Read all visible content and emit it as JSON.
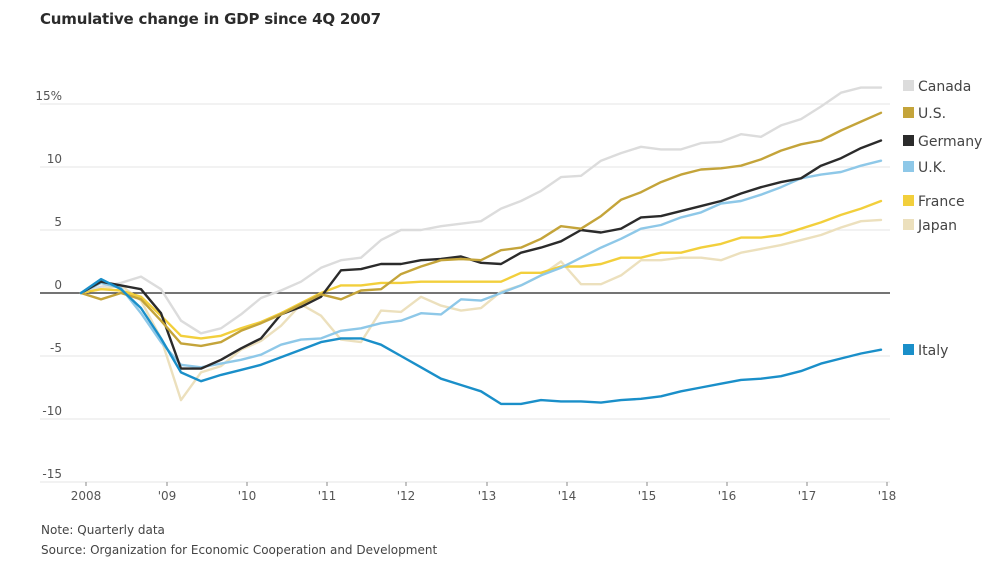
{
  "chart_data": {
    "type": "line",
    "title": "Cumulative change in GDP since 4Q 2007",
    "xlabel": "",
    "ylabel": "",
    "ylim": [
      -15,
      15
    ],
    "y_ticks": [
      {
        "value": 15,
        "label": "15%"
      },
      {
        "value": 10,
        "label": "10"
      },
      {
        "value": 5,
        "label": "5"
      },
      {
        "value": 0,
        "label": "0"
      },
      {
        "value": -5,
        "label": "-5"
      },
      {
        "value": -10,
        "label": "-10"
      },
      {
        "value": -15,
        "label": "-15"
      }
    ],
    "x_ticks": [
      {
        "quarter": 0.25,
        "label": "2008"
      },
      {
        "quarter": 4.3,
        "label": "'09"
      },
      {
        "quarter": 8.3,
        "label": "'10"
      },
      {
        "quarter": 12.3,
        "label": "'11"
      },
      {
        "quarter": 16.25,
        "label": "'12"
      },
      {
        "quarter": 20.3,
        "label": "'13"
      },
      {
        "quarter": 24.3,
        "label": "'14"
      },
      {
        "quarter": 28.3,
        "label": "'15"
      },
      {
        "quarter": 32.3,
        "label": "'16"
      },
      {
        "quarter": 36.3,
        "label": "'17"
      },
      {
        "quarter": 40.3,
        "label": "'18"
      }
    ],
    "x_description": "Quarters from 4Q 2007 (0) to 4Q 2017 (40)",
    "grid": true,
    "legend_position": "right",
    "series": [
      {
        "name": "Canada",
        "color": "#dcdcdc",
        "values": [
          0,
          0.5,
          0.8,
          1.3,
          0.3,
          -2.2,
          -3.2,
          -2.8,
          -1.7,
          -0.4,
          0.2,
          0.9,
          2.0,
          2.6,
          2.8,
          4.2,
          5.0,
          5.0,
          5.3,
          5.5,
          5.7,
          6.7,
          7.3,
          8.1,
          9.2,
          9.3,
          10.5,
          11.1,
          11.6,
          11.4,
          11.4,
          11.9,
          12.0,
          12.6,
          12.4,
          13.3,
          13.8,
          14.8,
          15.9,
          16.3,
          16.3
        ]
      },
      {
        "name": "Japan",
        "color": "#ece0bd",
        "values": [
          0,
          0.3,
          0.6,
          -0.6,
          -3.6,
          -8.5,
          -6.3,
          -5.8,
          -4.5,
          -3.8,
          -2.6,
          -0.9,
          -1.8,
          -3.7,
          -3.9,
          -1.4,
          -1.5,
          -0.3,
          -1.0,
          -1.4,
          -1.2,
          0.1,
          0.6,
          1.4,
          2.5,
          0.7,
          0.7,
          1.4,
          2.6,
          2.6,
          2.8,
          2.8,
          2.6,
          3.2,
          3.5,
          3.8,
          4.2,
          4.6,
          5.2,
          5.7,
          5.8
        ]
      },
      {
        "name": "France",
        "color": "#f2cf3c",
        "values": [
          0,
          0.3,
          0.2,
          -0.3,
          -1.8,
          -3.4,
          -3.6,
          -3.4,
          -2.8,
          -2.3,
          -1.6,
          -0.8,
          0.0,
          0.6,
          0.6,
          0.8,
          0.8,
          0.9,
          0.9,
          0.9,
          0.9,
          0.9,
          1.6,
          1.6,
          2.1,
          2.1,
          2.3,
          2.8,
          2.8,
          3.2,
          3.2,
          3.6,
          3.9,
          4.4,
          4.4,
          4.6,
          5.1,
          5.6,
          6.2,
          6.7,
          7.3
        ]
      },
      {
        "name": "U.K.",
        "color": "#8ec8e8",
        "values": [
          0,
          0.8,
          0.4,
          -1.6,
          -3.9,
          -5.7,
          -5.9,
          -5.6,
          -5.3,
          -4.9,
          -4.1,
          -3.7,
          -3.6,
          -3.0,
          -2.8,
          -2.4,
          -2.2,
          -1.6,
          -1.7,
          -0.5,
          -0.6,
          0.0,
          0.6,
          1.4,
          2.0,
          2.8,
          3.6,
          4.3,
          5.1,
          5.4,
          6.0,
          6.4,
          7.1,
          7.3,
          7.8,
          8.4,
          9.1,
          9.4,
          9.6,
          10.1,
          10.5
        ]
      },
      {
        "name": "Germany",
        "color": "#2b2b2b",
        "values": [
          0,
          0.9,
          0.6,
          0.3,
          -1.6,
          -6.0,
          -6.0,
          -5.3,
          -4.4,
          -3.6,
          -1.7,
          -1.1,
          -0.3,
          1.8,
          1.9,
          2.3,
          2.3,
          2.6,
          2.7,
          2.9,
          2.4,
          2.3,
          3.2,
          3.6,
          4.1,
          5.0,
          4.8,
          5.1,
          6.0,
          6.1,
          6.5,
          6.9,
          7.3,
          7.9,
          8.4,
          8.8,
          9.1,
          10.1,
          10.7,
          11.5,
          12.1
        ]
      },
      {
        "name": "U.S.",
        "color": "#c4a43a",
        "values": [
          0,
          -0.5,
          0,
          -0.5,
          -2.2,
          -4.0,
          -4.2,
          -3.9,
          -3.0,
          -2.4,
          -1.7,
          -0.9,
          -0.1,
          -0.5,
          0.2,
          0.3,
          1.5,
          2.1,
          2.6,
          2.7,
          2.6,
          3.4,
          3.6,
          4.3,
          5.3,
          5.1,
          6.1,
          7.4,
          8.0,
          8.8,
          9.4,
          9.8,
          9.9,
          10.1,
          10.6,
          11.3,
          11.8,
          12.1,
          12.9,
          13.6,
          14.3
        ]
      },
      {
        "name": "Italy",
        "color": "#1a8fc9",
        "values": [
          0,
          1.1,
          0.3,
          -1.2,
          -3.6,
          -6.3,
          -7.0,
          -6.5,
          -6.1,
          -5.7,
          -5.1,
          -4.5,
          -3.9,
          -3.6,
          -3.6,
          -4.1,
          -5.0,
          -5.9,
          -6.8,
          -7.3,
          -7.8,
          -8.8,
          -8.8,
          -8.5,
          -8.6,
          -8.6,
          -8.7,
          -8.5,
          -8.4,
          -8.2,
          -7.8,
          -7.5,
          -7.2,
          -6.9,
          -6.8,
          -6.6,
          -6.2,
          -5.6,
          -5.2,
          -4.8,
          -4.5
        ]
      }
    ],
    "legend": [
      {
        "name": "Canada",
        "color": "#dcdcdc"
      },
      {
        "name": "U.S.",
        "color": "#c4a43a"
      },
      {
        "name": "Germany",
        "color": "#2b2b2b"
      },
      {
        "name": "U.K.",
        "color": "#8ec8e8"
      },
      {
        "name": "France",
        "color": "#f2cf3c"
      },
      {
        "name": "Japan",
        "color": "#ece0bd"
      },
      {
        "name": "Italy",
        "color": "#1a8fc9"
      }
    ]
  },
  "footer": {
    "note": "Note: Quarterly data",
    "source": "Source: Organization for Economic Cooperation and Development"
  }
}
